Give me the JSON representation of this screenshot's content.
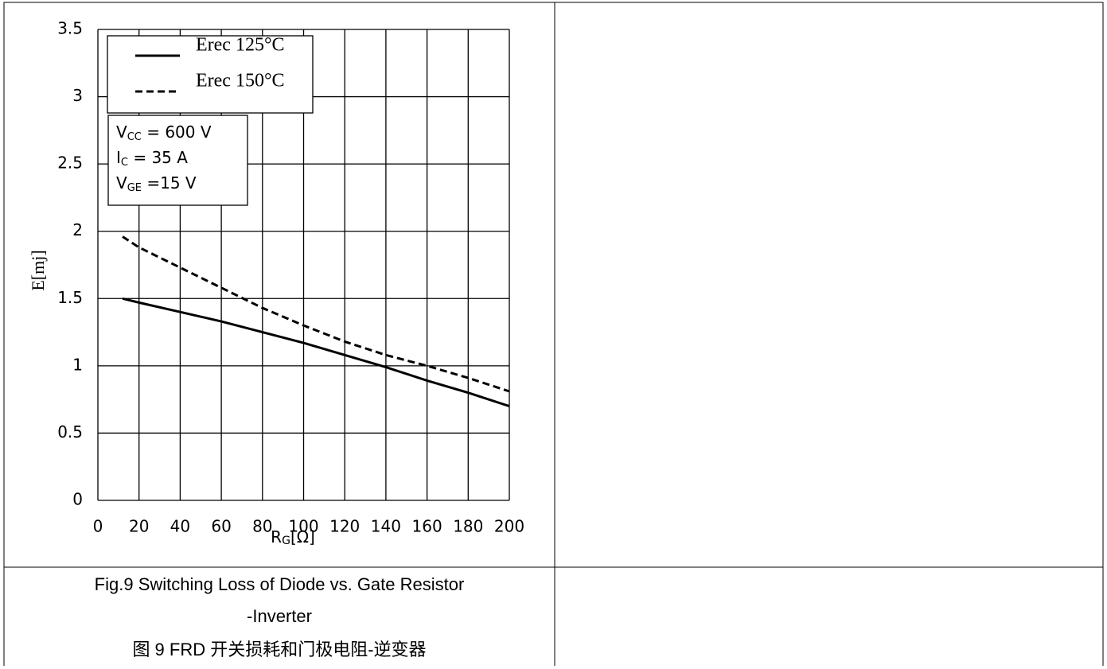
{
  "chart_data": {
    "type": "line",
    "y_label": "E[mj]",
    "x_label": [
      "R",
      "G",
      "[Ω]"
    ],
    "xlim": [
      0,
      200
    ],
    "xticks": [
      0,
      20,
      40,
      60,
      80,
      100,
      120,
      140,
      160,
      180,
      200
    ],
    "ylim": [
      0,
      3.5
    ],
    "yticks": [
      0,
      0.5,
      1,
      1.5,
      2,
      2.5,
      3,
      3.5
    ],
    "grid": true,
    "legend": "upper left",
    "series": [
      {
        "name": "Erec 125°C",
        "color": "#000000",
        "dash": false,
        "x": [
          12,
          20,
          40,
          60,
          80,
          100,
          120,
          140,
          160,
          180,
          200
        ],
        "values": [
          1.5,
          1.47,
          1.4,
          1.33,
          1.25,
          1.17,
          1.08,
          0.99,
          0.89,
          0.8,
          0.7
        ]
      },
      {
        "name": "Erec 150°C",
        "color": "#000000",
        "dash": true,
        "x": [
          12,
          20,
          40,
          60,
          80,
          100,
          120,
          140,
          160,
          180,
          200
        ],
        "values": [
          1.96,
          1.88,
          1.73,
          1.58,
          1.43,
          1.3,
          1.18,
          1.08,
          1.0,
          0.91,
          0.81
        ]
      }
    ],
    "annotations": [
      [
        "V",
        "CC",
        " = 600 V"
      ],
      [
        "I",
        "C",
        " = 35 A"
      ],
      [
        "V",
        "GE",
        " =15 V"
      ]
    ]
  },
  "caption": [
    "Fig.9 Switching Loss of Diode vs. Gate Resistor",
    "-Inverter",
    "图 9 FRD 开关损耗和门极电阻-逆变器"
  ]
}
